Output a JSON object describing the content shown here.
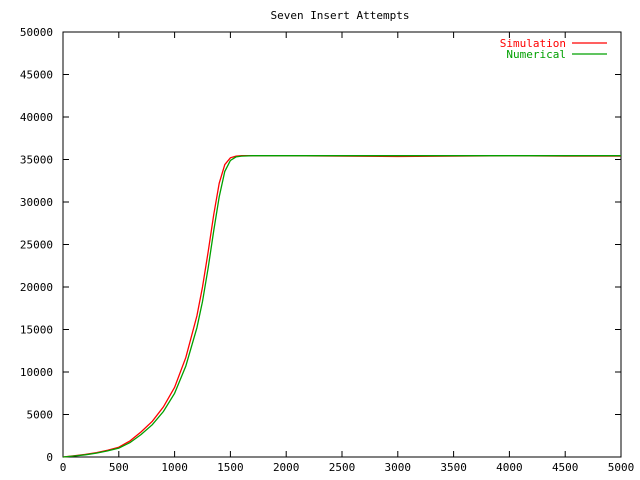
{
  "chart_data": {
    "type": "line",
    "title": "Seven Insert Attempts",
    "xlabel": "",
    "ylabel": "",
    "xlim": [
      0,
      5000
    ],
    "ylim": [
      0,
      50000
    ],
    "xticks": [
      0,
      500,
      1000,
      1500,
      2000,
      2500,
      3000,
      3500,
      4000,
      4500,
      5000
    ],
    "yticks": [
      0,
      5000,
      10000,
      15000,
      20000,
      25000,
      30000,
      35000,
      40000,
      45000,
      50000
    ],
    "grid": false,
    "legend_position": "top-right",
    "series": [
      {
        "name": "Simulation",
        "color": "#ff0000",
        "x": [
          0,
          100,
          200,
          300,
          400,
          500,
          600,
          700,
          800,
          900,
          1000,
          1100,
          1200,
          1250,
          1300,
          1350,
          1400,
          1450,
          1500,
          1550,
          1600,
          1700,
          2000,
          2500,
          3000,
          3500,
          4000,
          4500,
          5000
        ],
        "y": [
          0,
          140,
          300,
          520,
          800,
          1150,
          1900,
          2950,
          4200,
          5900,
          8200,
          11700,
          16600,
          20000,
          24100,
          28500,
          32200,
          34400,
          35200,
          35400,
          35450,
          35450,
          35450,
          35400,
          35350,
          35400,
          35450,
          35400,
          35400
        ]
      },
      {
        "name": "Numerical",
        "color": "#00a000",
        "x": [
          0,
          100,
          200,
          300,
          400,
          500,
          600,
          700,
          800,
          900,
          1000,
          1100,
          1200,
          1250,
          1300,
          1350,
          1400,
          1450,
          1500,
          1550,
          1600,
          1700,
          2000,
          2500,
          3000,
          3500,
          4000,
          4500,
          5000
        ],
        "y": [
          0,
          120,
          260,
          460,
          720,
          1050,
          1700,
          2650,
          3800,
          5350,
          7500,
          10700,
          15200,
          18300,
          22200,
          26600,
          30600,
          33600,
          34900,
          35300,
          35400,
          35450,
          35450,
          35450,
          35450,
          35450,
          35450,
          35450,
          35450
        ]
      }
    ]
  }
}
